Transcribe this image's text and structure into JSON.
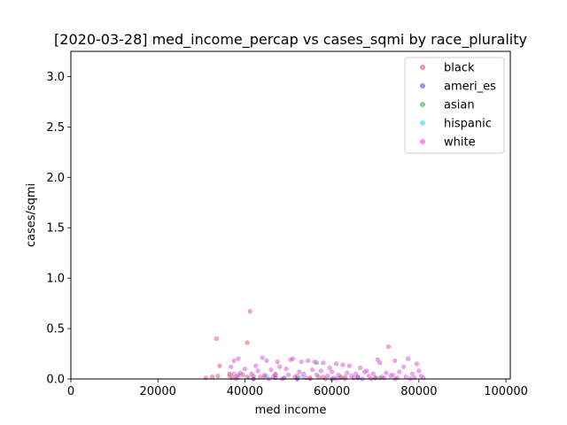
{
  "chart_data": {
    "type": "scatter",
    "title": "[2020-03-28] med_income_percap vs cases_sqmi by race_plurality",
    "xlabel": "med income",
    "ylabel": "cases/sqmi",
    "xlim": [
      0,
      101000
    ],
    "ylim": [
      0,
      3.25
    ],
    "xticks": [
      0,
      20000,
      40000,
      60000,
      80000,
      100000
    ],
    "yticks": [
      0.0,
      0.5,
      1.0,
      1.5,
      2.0,
      2.5,
      3.0
    ],
    "xtick_labels": [
      "0",
      "20000",
      "40000",
      "60000",
      "80000",
      "100000"
    ],
    "ytick_labels": [
      "0.0",
      "0.5",
      "1.0",
      "1.5",
      "2.0",
      "2.5",
      "3.0"
    ],
    "grid": false,
    "legend_position": "top-right",
    "series": [
      {
        "name": "black",
        "color": "#e84a4a",
        "points": [
          [
            33500,
            0.4
          ],
          [
            41200,
            0.67
          ],
          [
            40500,
            0.36
          ],
          [
            73000,
            0.32
          ],
          [
            34200,
            0.13
          ],
          [
            31000,
            0.01
          ],
          [
            32500,
            0.02
          ],
          [
            33800,
            0.03
          ],
          [
            36500,
            0.05
          ],
          [
            38000,
            0.02
          ],
          [
            42000,
            0.03
          ],
          [
            44500,
            0.02
          ],
          [
            47000,
            0.04
          ],
          [
            52000,
            0.03
          ],
          [
            58000,
            0.02
          ],
          [
            63000,
            0.02
          ],
          [
            70000,
            0.01
          ],
          [
            37000,
            0.01
          ],
          [
            39500,
            0.04
          ],
          [
            55000,
            0.01
          ]
        ]
      },
      {
        "name": "ameri_es",
        "color": "#3a4fd0",
        "points": [
          [
            42000,
            0.0
          ],
          [
            47000,
            0.01
          ],
          [
            52000,
            0.0
          ],
          [
            60000,
            0.0
          ],
          [
            66000,
            0.01
          ]
        ]
      },
      {
        "name": "asian",
        "color": "#3aa83a",
        "points": [
          [
            56500,
            0.16
          ],
          [
            62000,
            0.02
          ],
          [
            71000,
            0.01
          ]
        ]
      },
      {
        "name": "hispanic",
        "color": "#38d0d6",
        "points": [
          [
            38500,
            0.02
          ],
          [
            41000,
            0.01
          ],
          [
            45000,
            0.03
          ],
          [
            49000,
            0.01
          ],
          [
            53000,
            0.02
          ]
        ]
      },
      {
        "name": "white",
        "color": "#d048d0",
        "points": [
          [
            37500,
            0.18
          ],
          [
            38500,
            0.2
          ],
          [
            44000,
            0.21
          ],
          [
            45000,
            0.18
          ],
          [
            47500,
            0.17
          ],
          [
            50500,
            0.19
          ],
          [
            51000,
            0.2
          ],
          [
            53000,
            0.17
          ],
          [
            54500,
            0.18
          ],
          [
            56000,
            0.17
          ],
          [
            58000,
            0.16
          ],
          [
            61000,
            0.15
          ],
          [
            62500,
            0.14
          ],
          [
            64000,
            0.13
          ],
          [
            66500,
            0.11
          ],
          [
            70500,
            0.19
          ],
          [
            71000,
            0.16
          ],
          [
            74500,
            0.18
          ],
          [
            77500,
            0.2
          ],
          [
            79500,
            0.15
          ],
          [
            80000,
            0.08
          ],
          [
            76500,
            0.12
          ],
          [
            68000,
            0.08
          ],
          [
            59500,
            0.11
          ],
          [
            48000,
            0.12
          ],
          [
            42500,
            0.13
          ],
          [
            40000,
            0.1
          ],
          [
            36800,
            0.12
          ],
          [
            39000,
            0.06
          ],
          [
            43000,
            0.08
          ],
          [
            46000,
            0.09
          ],
          [
            49500,
            0.1
          ],
          [
            52500,
            0.07
          ],
          [
            55500,
            0.09
          ],
          [
            57500,
            0.08
          ],
          [
            60000,
            0.07
          ],
          [
            63500,
            0.06
          ],
          [
            65500,
            0.05
          ],
          [
            67500,
            0.07
          ],
          [
            69500,
            0.05
          ],
          [
            72500,
            0.06
          ],
          [
            74000,
            0.04
          ],
          [
            75500,
            0.07
          ],
          [
            78500,
            0.05
          ],
          [
            80500,
            0.03
          ],
          [
            36500,
            0.03
          ],
          [
            37500,
            0.05
          ],
          [
            38500,
            0.04
          ],
          [
            41500,
            0.05
          ],
          [
            44500,
            0.04
          ],
          [
            47000,
            0.05
          ],
          [
            50000,
            0.04
          ],
          [
            53500,
            0.05
          ],
          [
            56500,
            0.04
          ],
          [
            59000,
            0.03
          ],
          [
            61500,
            0.04
          ],
          [
            64500,
            0.03
          ],
          [
            66000,
            0.02
          ],
          [
            68500,
            0.03
          ],
          [
            71500,
            0.02
          ],
          [
            73500,
            0.03
          ],
          [
            77000,
            0.02
          ],
          [
            79000,
            0.01
          ],
          [
            81000,
            0.01
          ],
          [
            40500,
            0.02
          ],
          [
            43500,
            0.02
          ],
          [
            46500,
            0.02
          ],
          [
            49000,
            0.01
          ],
          [
            51500,
            0.02
          ],
          [
            54000,
            0.01
          ],
          [
            57000,
            0.02
          ],
          [
            60500,
            0.01
          ],
          [
            62000,
            0.01
          ],
          [
            65000,
            0.01
          ],
          [
            70000,
            0.01
          ],
          [
            72000,
            0.01
          ],
          [
            75000,
            0.01
          ],
          [
            78000,
            0.0
          ],
          [
            45500,
            0.0
          ],
          [
            55000,
            0.0
          ],
          [
            63000,
            0.0
          ],
          [
            67000,
            0.0
          ],
          [
            74500,
            0.0
          ],
          [
            38000,
            0.0
          ],
          [
            42000,
            0.0
          ],
          [
            48500,
            0.0
          ],
          [
            52000,
            0.0
          ],
          [
            58500,
            0.0
          ],
          [
            61000,
            0.0
          ],
          [
            69000,
            0.0
          ]
        ]
      }
    ]
  }
}
